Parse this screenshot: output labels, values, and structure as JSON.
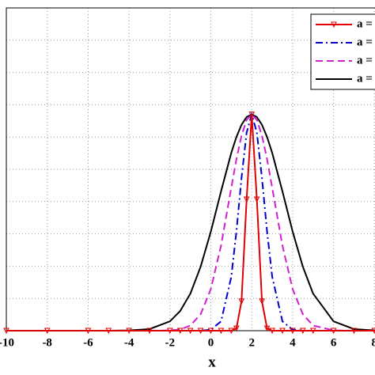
{
  "chart_data": {
    "type": "line",
    "x_label": "x",
    "x": [
      -10,
      -8,
      -6,
      -5,
      -4,
      -3,
      -2,
      -1.5,
      -1,
      -0.5,
      0,
      0.5,
      1,
      1.25,
      1.5,
      1.75,
      2,
      2.25,
      2.5,
      2.75,
      3,
      3.5,
      4,
      4.5,
      5,
      6,
      7,
      8,
      10
    ],
    "series": [
      {
        "name": "a =",
        "color": "#e00000",
        "marker": "triangle-down",
        "dash": "solid",
        "values": [
          0,
          0,
          0,
          0,
          0,
          0,
          0,
          0,
          0,
          0,
          0,
          0,
          0,
          0.007,
          0.091,
          0.407,
          0.67,
          0.407,
          0.091,
          0.007,
          0,
          0,
          0,
          0,
          0,
          0,
          0,
          0,
          0
        ]
      },
      {
        "name": "a =",
        "color": "#0000cc",
        "dash": "dashdot",
        "values": [
          0,
          0,
          0,
          0,
          0,
          0,
          0,
          0,
          0,
          0,
          0.003,
          0.029,
          0.167,
          0.307,
          0.473,
          0.614,
          0.67,
          0.614,
          0.473,
          0.307,
          0.167,
          0.029,
          0.003,
          0,
          0,
          0,
          0,
          0,
          0
        ]
      },
      {
        "name": "a =",
        "color": "#d020d0",
        "dash": "dashed",
        "values": [
          0,
          0,
          0,
          0,
          0,
          0,
          0.001,
          0.004,
          0.016,
          0.051,
          0.129,
          0.264,
          0.443,
          0.531,
          0.604,
          0.653,
          0.67,
          0.653,
          0.604,
          0.531,
          0.443,
          0.264,
          0.129,
          0.051,
          0.016,
          0.001,
          0,
          0,
          0
        ]
      },
      {
        "name": "a =",
        "color": "#000000",
        "dash": "solid",
        "values": [
          0,
          0,
          0,
          0,
          0.001,
          0.005,
          0.029,
          0.061,
          0.115,
          0.198,
          0.307,
          0.432,
          0.551,
          0.6,
          0.638,
          0.662,
          0.67,
          0.662,
          0.638,
          0.6,
          0.551,
          0.432,
          0.307,
          0.198,
          0.115,
          0.029,
          0.005,
          0.001,
          0
        ]
      }
    ],
    "xlim": [
      -10,
      10
    ],
    "xticks": [
      -10,
      -8,
      -6,
      -4,
      -2,
      0,
      2,
      4,
      6,
      8
    ],
    "ylim": [
      0,
      1
    ],
    "yticks": [
      0,
      0.1,
      0.2,
      0.3,
      0.4,
      0.5,
      0.6,
      0.7,
      0.8,
      0.9,
      1
    ],
    "grid": true,
    "legend": "upper right"
  }
}
